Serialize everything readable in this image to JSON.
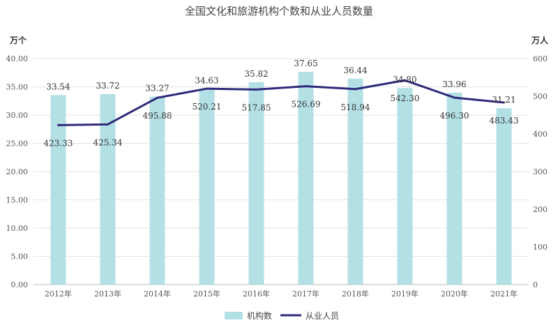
{
  "chart_data": {
    "type": "bar",
    "title": "全国文化和旅游机构个数和从业人员数量",
    "y_left_unit": "万个",
    "y_right_unit": "万人",
    "categories": [
      "2012年",
      "2013年",
      "2014年",
      "2015年",
      "2016年",
      "2017年",
      "2018年",
      "2019年",
      "2020年",
      "2021年"
    ],
    "y_left_ticks": [
      "40.00",
      "35.00",
      "30.00",
      "25.00",
      "20.00",
      "15.00",
      "10.00",
      "5.00",
      "0.00"
    ],
    "y_right_ticks": [
      "600",
      "500",
      "400",
      "300",
      "200",
      "100",
      "0"
    ],
    "ylim_left": [
      0,
      40
    ],
    "ylim_right": [
      0,
      600
    ],
    "series": [
      {
        "name": "机构数",
        "type": "bar",
        "axis": "left",
        "color": "#b3e0e5",
        "values": [
          33.54,
          33.72,
          33.27,
          34.63,
          35.82,
          37.65,
          36.44,
          34.8,
          33.96,
          31.21
        ],
        "labels": [
          "33.54",
          "33.72",
          "33.27",
          "34.63",
          "35.82",
          "37.65",
          "36.44",
          "34.80",
          "33.96",
          "31.21"
        ]
      },
      {
        "name": "从业人员",
        "type": "line",
        "axis": "right",
        "color": "#2e2a7a",
        "values": [
          423.33,
          425.34,
          495.88,
          520.21,
          517.85,
          526.69,
          518.94,
          542.3,
          496.3,
          483.43
        ],
        "labels": [
          "423.33",
          "425.34",
          "495.88",
          "520.21",
          "517.85",
          "526.69",
          "518.94",
          "542.30",
          "496.30",
          "483.43"
        ]
      }
    ],
    "grid": true,
    "legend": "bottom-center"
  }
}
